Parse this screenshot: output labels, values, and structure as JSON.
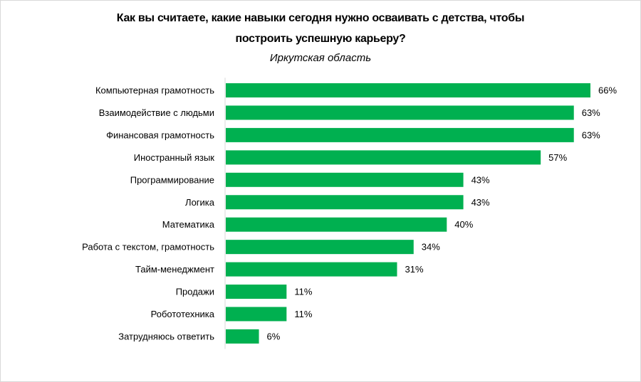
{
  "chart_data": {
    "type": "bar",
    "orientation": "horizontal",
    "title_line1": "Как вы считаете, какие навыки сегодня нужно осваивать с детства, чтобы",
    "title_line2": "построить успешную карьеру?",
    "subtitle": "Иркутская область",
    "categories": [
      "Компьютерная грамотность",
      "Взаимодействие с людьми",
      "Финансовая грамотность",
      "Иностранный язык",
      "Программирование",
      "Логика",
      "Математика",
      "Работа с текстом, грамотность",
      "Тайм-менеджмент",
      "Продажи",
      "Робототехника",
      "Затрудняюсь ответить"
    ],
    "values": [
      66,
      63,
      63,
      57,
      43,
      43,
      40,
      34,
      31,
      11,
      11,
      6
    ],
    "value_labels": [
      "66%",
      "63%",
      "63%",
      "57%",
      "43%",
      "43%",
      "40%",
      "34%",
      "31%",
      "11%",
      "11%",
      "6%"
    ],
    "unit": "%",
    "xlim": [
      0,
      66
    ],
    "grid": false,
    "legend": "none",
    "bar_color": "#00b050"
  }
}
